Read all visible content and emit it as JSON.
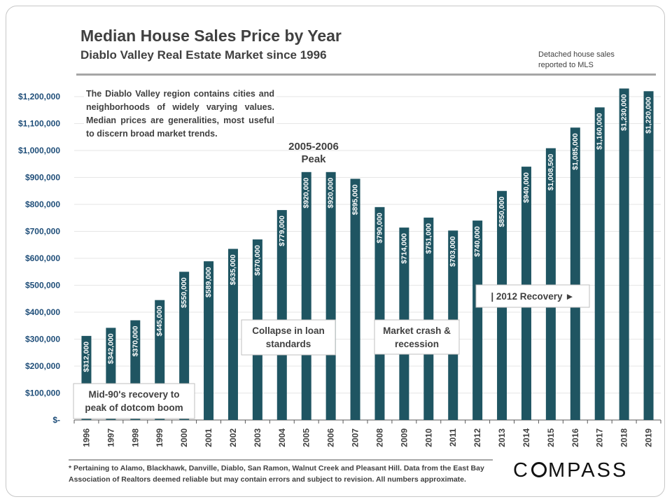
{
  "header": {
    "title": "Median House Sales Price by Year",
    "subtitle": "Diablo Valley Real Estate Market since 1996",
    "note": "Detached house sales reported to MLS"
  },
  "footer": {
    "footnote": "* Pertaining to Alamo, Blackhawk, Danville, Diablo, San Ramon, Walnut Creek and Pleasant Hill. Data from the East Bay Association of Realtors deemed reliable but may contain errors and subject to revision. All numbers approximate.",
    "brand": "COMPASS"
  },
  "colors": {
    "bar": "#1f5562",
    "grid": "#e6e6e6",
    "text": "#404040",
    "axis": "#595959"
  },
  "chart_data": {
    "type": "bar",
    "title": "Median House Sales Price by Year",
    "subtitle": "Diablo Valley Real Estate Market since 1996",
    "xlabel": "",
    "ylabel": "",
    "ylim": [
      0,
      1200000
    ],
    "yticks": [
      0,
      100000,
      200000,
      300000,
      400000,
      500000,
      600000,
      700000,
      800000,
      900000,
      1000000,
      1100000,
      1200000
    ],
    "ytick_labels": [
      "$-",
      "$100,000",
      "$200,000",
      "$300,000",
      "$400,000",
      "$500,000",
      "$600,000",
      "$700,000",
      "$800,000",
      "$900,000",
      "$1,000,000",
      "$1,100,000",
      "$1,200,000"
    ],
    "grid": true,
    "categories": [
      "1996",
      "1997",
      "1998",
      "1999",
      "2000",
      "2001",
      "2002",
      "2003",
      "2004",
      "2005",
      "2006",
      "2007",
      "2008",
      "2009",
      "2010",
      "2011",
      "2012",
      "2013",
      "2014",
      "2015",
      "2016",
      "2017",
      "2018",
      "2019"
    ],
    "values": [
      312000,
      342000,
      370000,
      445000,
      550000,
      589000,
      635000,
      670000,
      779000,
      920000,
      920000,
      895000,
      790000,
      714000,
      751000,
      703000,
      740000,
      850000,
      940000,
      1008500,
      1085000,
      1160000,
      1230000,
      1220000
    ],
    "value_labels": [
      "$312,000",
      "$342,000",
      "$370,000",
      "$445,000",
      "$550,000",
      "$589,000",
      "$635,000",
      "$670,000",
      "$779,000",
      "$920,000",
      "$920,000",
      "$895,000",
      "$790,000",
      "$714,000",
      "$751,000",
      "$703,000",
      "$740,000",
      "$850,000",
      "$940,000",
      "$1,008,500",
      "$1,085,000",
      "$1,160,000",
      "$1,230,000",
      "$1,220,000"
    ],
    "annotations": [
      {
        "text": "The Diablo Valley region contains cities and neighborhoods of widely varying values. Median prices are generalities, most useful to discern broad market trends.",
        "boxed": false
      },
      {
        "text": "2005-2006 Peak",
        "boxed": false
      },
      {
        "text": "Collapse in loan standards",
        "boxed": true
      },
      {
        "text": "Market crash & recession",
        "boxed": true
      },
      {
        "text": "| 2012 Recovery ►",
        "boxed": true
      },
      {
        "text": "Mid-90's recovery to peak of dotcom boom",
        "boxed": true
      }
    ]
  }
}
